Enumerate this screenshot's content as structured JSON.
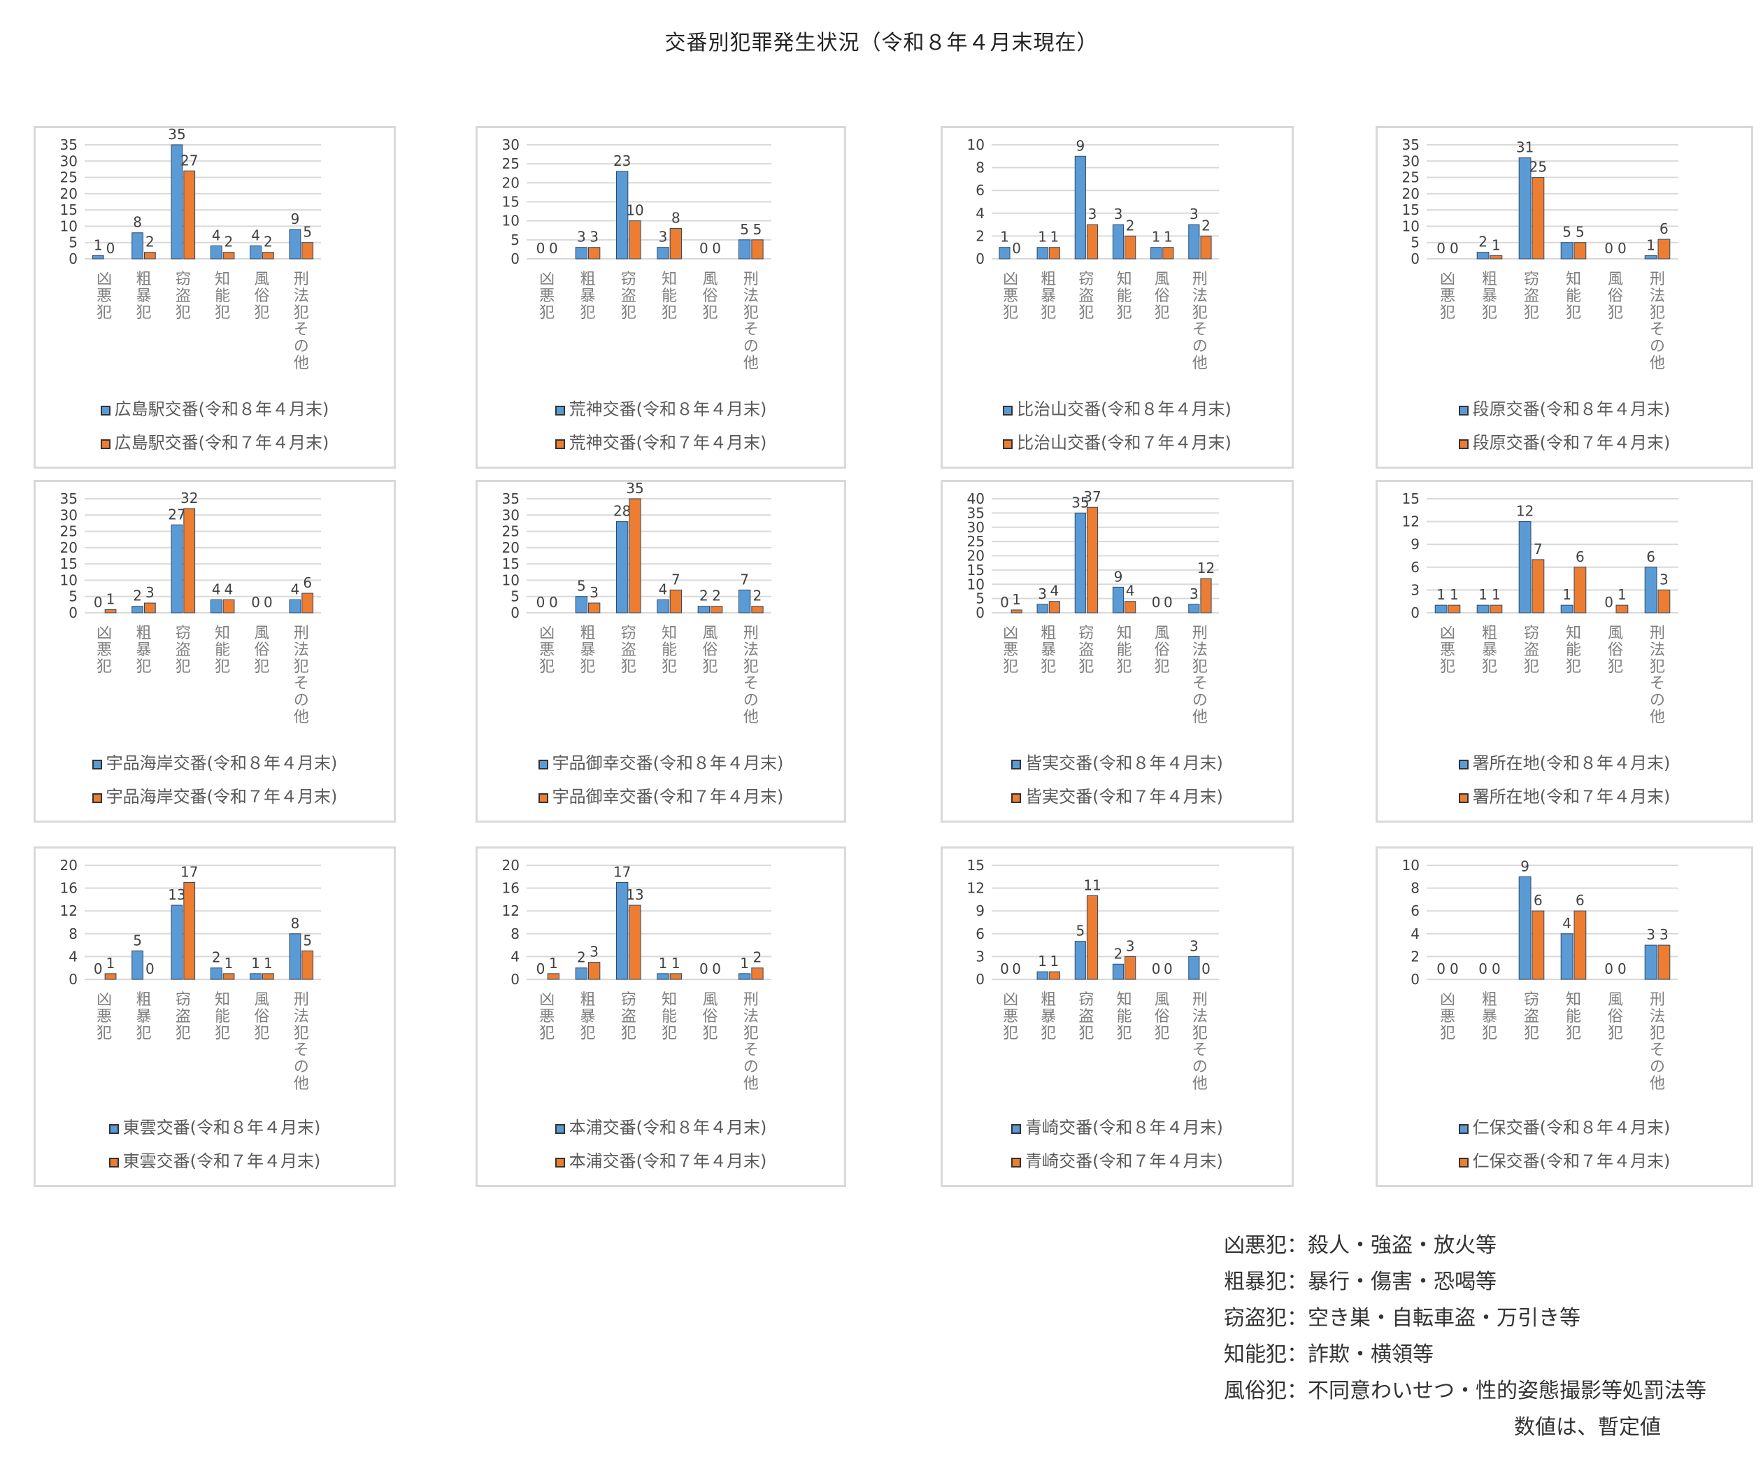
{
  "title": "交番別犯罪発生状況（令和８年４月末現在）",
  "colors": {
    "current": "#5b9bd5",
    "previous": "#ed7d31",
    "grid": "#d9d9d9",
    "border": "#d9d9d9"
  },
  "chart_data": [
    {
      "type": "bar",
      "categories": [
        "凶悪犯",
        "粗暴犯",
        "窃盗犯",
        "知能犯",
        "風俗犯",
        "刑法犯その他"
      ],
      "yticks": [
        0,
        5,
        10,
        15,
        20,
        25,
        30,
        35
      ],
      "ylim": [
        0,
        35
      ],
      "series": [
        {
          "name": "広島駅交番(令和８年４月末)",
          "values": [
            1,
            8,
            35,
            4,
            4,
            9
          ]
        },
        {
          "name": "広島駅交番(令和７年４月末)",
          "values": [
            0,
            2,
            27,
            2,
            2,
            5
          ]
        }
      ]
    },
    {
      "type": "bar",
      "categories": [
        "凶悪犯",
        "粗暴犯",
        "窃盗犯",
        "知能犯",
        "風俗犯",
        "刑法犯その他"
      ],
      "yticks": [
        0,
        5,
        10,
        15,
        20,
        25,
        30
      ],
      "ylim": [
        0,
        30
      ],
      "series": [
        {
          "name": "荒神交番(令和８年４月末)",
          "values": [
            0,
            3,
            23,
            3,
            0,
            5
          ]
        },
        {
          "name": "荒神交番(令和７年４月末)",
          "values": [
            0,
            3,
            10,
            8,
            0,
            5
          ]
        }
      ]
    },
    {
      "type": "bar",
      "categories": [
        "凶悪犯",
        "粗暴犯",
        "窃盗犯",
        "知能犯",
        "風俗犯",
        "刑法犯その他"
      ],
      "yticks": [
        0,
        2,
        4,
        6,
        8,
        10
      ],
      "ylim": [
        0,
        10
      ],
      "series": [
        {
          "name": "比治山交番(令和８年４月末)",
          "values": [
            1,
            1,
            9,
            3,
            1,
            3
          ]
        },
        {
          "name": "比治山交番(令和７年４月末)",
          "values": [
            0,
            1,
            3,
            2,
            1,
            2
          ]
        }
      ]
    },
    {
      "type": "bar",
      "categories": [
        "凶悪犯",
        "粗暴犯",
        "窃盗犯",
        "知能犯",
        "風俗犯",
        "刑法犯その他"
      ],
      "yticks": [
        0,
        5,
        10,
        15,
        20,
        25,
        30,
        35
      ],
      "ylim": [
        0,
        35
      ],
      "series": [
        {
          "name": "段原交番(令和８年４月末)",
          "values": [
            0,
            2,
            31,
            5,
            0,
            1
          ]
        },
        {
          "name": "段原交番(令和７年４月末)",
          "values": [
            0,
            1,
            25,
            5,
            0,
            6
          ]
        }
      ]
    },
    {
      "type": "bar",
      "categories": [
        "凶悪犯",
        "粗暴犯",
        "窃盗犯",
        "知能犯",
        "風俗犯",
        "刑法犯その他"
      ],
      "yticks": [
        0,
        5,
        10,
        15,
        20,
        25,
        30,
        35
      ],
      "ylim": [
        0,
        35
      ],
      "series": [
        {
          "name": "宇品海岸交番(令和８年４月末)",
          "values": [
            0,
            2,
            27,
            4,
            0,
            4
          ]
        },
        {
          "name": "宇品海岸交番(令和７年４月末)",
          "values": [
            1,
            3,
            32,
            4,
            0,
            6
          ]
        }
      ]
    },
    {
      "type": "bar",
      "categories": [
        "凶悪犯",
        "粗暴犯",
        "窃盗犯",
        "知能犯",
        "風俗犯",
        "刑法犯その他"
      ],
      "yticks": [
        0,
        5,
        10,
        15,
        20,
        25,
        30,
        35
      ],
      "ylim": [
        0,
        35
      ],
      "series": [
        {
          "name": "宇品御幸交番(令和８年４月末)",
          "values": [
            0,
            5,
            28,
            4,
            2,
            7
          ]
        },
        {
          "name": "宇品御幸交番(令和７年４月末)",
          "values": [
            0,
            3,
            35,
            7,
            2,
            2
          ]
        }
      ]
    },
    {
      "type": "bar",
      "categories": [
        "凶悪犯",
        "粗暴犯",
        "窃盗犯",
        "知能犯",
        "風俗犯",
        "刑法犯その他"
      ],
      "yticks": [
        0,
        5,
        10,
        15,
        20,
        25,
        30,
        35,
        40
      ],
      "ylim": [
        0,
        40
      ],
      "series": [
        {
          "name": "皆実交番(令和８年４月末)",
          "values": [
            0,
            3,
            35,
            9,
            0,
            3
          ]
        },
        {
          "name": "皆実交番(令和７年４月末)",
          "values": [
            1,
            4,
            37,
            4,
            0,
            12
          ]
        }
      ]
    },
    {
      "type": "bar",
      "categories": [
        "凶悪犯",
        "粗暴犯",
        "窃盗犯",
        "知能犯",
        "風俗犯",
        "刑法犯その他"
      ],
      "yticks": [
        0,
        3,
        6,
        9,
        12,
        15
      ],
      "ylim": [
        0,
        15
      ],
      "series": [
        {
          "name": "署所在地(令和８年４月末)",
          "values": [
            1,
            1,
            12,
            1,
            0,
            6
          ]
        },
        {
          "name": "署所在地(令和７年４月末)",
          "values": [
            1,
            1,
            7,
            6,
            1,
            3
          ]
        }
      ]
    },
    {
      "type": "bar",
      "categories": [
        "凶悪犯",
        "粗暴犯",
        "窃盗犯",
        "知能犯",
        "風俗犯",
        "刑法犯その他"
      ],
      "yticks": [
        0,
        4,
        8,
        12,
        16,
        20
      ],
      "ylim": [
        0,
        20
      ],
      "series": [
        {
          "name": "東雲交番(令和８年４月末)",
          "values": [
            0,
            5,
            13,
            2,
            1,
            8
          ]
        },
        {
          "name": "東雲交番(令和７年４月末)",
          "values": [
            1,
            0,
            17,
            1,
            1,
            5
          ]
        }
      ]
    },
    {
      "type": "bar",
      "categories": [
        "凶悪犯",
        "粗暴犯",
        "窃盗犯",
        "知能犯",
        "風俗犯",
        "刑法犯その他"
      ],
      "yticks": [
        0,
        4,
        8,
        12,
        16,
        20
      ],
      "ylim": [
        0,
        20
      ],
      "series": [
        {
          "name": "本浦交番(令和８年４月末)",
          "values": [
            0,
            2,
            17,
            1,
            0,
            1
          ]
        },
        {
          "name": "本浦交番(令和７年４月末)",
          "values": [
            1,
            3,
            13,
            1,
            0,
            2
          ]
        }
      ]
    },
    {
      "type": "bar",
      "categories": [
        "凶悪犯",
        "粗暴犯",
        "窃盗犯",
        "知能犯",
        "風俗犯",
        "刑法犯その他"
      ],
      "yticks": [
        0,
        3,
        6,
        9,
        12,
        15
      ],
      "ylim": [
        0,
        15
      ],
      "series": [
        {
          "name": "青崎交番(令和８年４月末)",
          "values": [
            0,
            1,
            5,
            2,
            0,
            3
          ]
        },
        {
          "name": "青崎交番(令和７年４月末)",
          "values": [
            0,
            1,
            11,
            3,
            0,
            0
          ]
        }
      ]
    },
    {
      "type": "bar",
      "categories": [
        "凶悪犯",
        "粗暴犯",
        "窃盗犯",
        "知能犯",
        "風俗犯",
        "刑法犯その他"
      ],
      "yticks": [
        0,
        2,
        4,
        6,
        8,
        10
      ],
      "ylim": [
        0,
        10
      ],
      "series": [
        {
          "name": "仁保交番(令和８年４月末)",
          "values": [
            0,
            0,
            9,
            4,
            0,
            3
          ]
        },
        {
          "name": "仁保交番(令和７年４月末)",
          "values": [
            0,
            0,
            6,
            6,
            0,
            3
          ]
        }
      ]
    }
  ],
  "notes": [
    "凶悪犯：殺人・強盗・放火等",
    "粗暴犯：暴行・傷害・恐喝等",
    "窃盗犯：空き巣・自転車盗・万引き等",
    "知能犯：詐欺・横領等",
    "風俗犯：不同意わいせつ・性的姿態撮影等処罰法等"
  ],
  "provisional_note": "数値は、暫定値"
}
